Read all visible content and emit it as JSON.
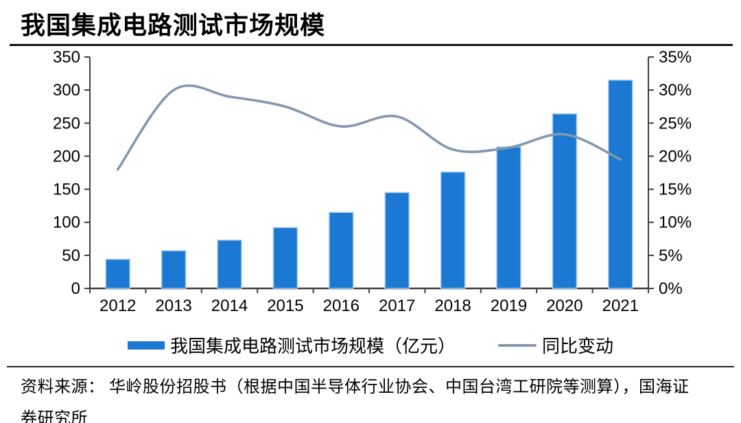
{
  "title": "我国集成电路测试市场规模",
  "legend": {
    "bar_label": "我国集成电路测试市场规模（亿元）",
    "line_label": "同比变动"
  },
  "source": {
    "line1": "资料来源： 华岭股份招股书（根据中国半导体行业协会、中国台湾工研院等测算），国海证",
    "line2": "券研究所"
  },
  "colors": {
    "bar": "#1B79D3",
    "bar_border": "#A9CBEE",
    "line": "#8497B0",
    "axis": "#3F3F3F",
    "text": "#000000"
  },
  "chart_data": {
    "type": "bar",
    "subtype": "bar+line combo, dual axis",
    "title": "我国集成电路测试市场规模",
    "categories": [
      "2012",
      "2013",
      "2014",
      "2015",
      "2016",
      "2017",
      "2018",
      "2019",
      "2020",
      "2021"
    ],
    "series": [
      {
        "name": "我国集成电路测试市场规模（亿元）",
        "type": "bar",
        "axis": "left",
        "values": [
          44,
          57,
          73,
          92,
          115,
          145,
          176,
          214,
          264,
          315
        ]
      },
      {
        "name": "同比变动",
        "type": "line",
        "axis": "right",
        "unit": "%",
        "values": [
          18,
          30,
          29,
          27.5,
          24.5,
          26,
          21,
          21.3,
          23.3,
          19.5
        ]
      }
    ],
    "left_axis": {
      "min": 0,
      "max": 350,
      "step": 50,
      "ticks": [
        "0",
        "50",
        "100",
        "150",
        "200",
        "250",
        "300",
        "350"
      ]
    },
    "right_axis": {
      "min": 0,
      "max": 35,
      "step": 5,
      "ticks": [
        "0%",
        "5%",
        "10%",
        "15%",
        "20%",
        "25%",
        "30%",
        "35%"
      ]
    },
    "grid": false,
    "legend_position": "bottom",
    "smoothed_line": true
  }
}
